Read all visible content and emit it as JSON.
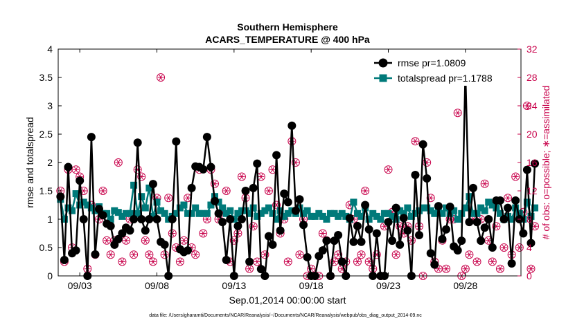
{
  "chart_data": {
    "type": "line",
    "title": "Southern Hemisphere",
    "subtitle": "ACARS_TEMPERATURE @ 400 hPa",
    "xlabel": "Sep.01,2014 00:00:00 start",
    "ylabel_left": "rmse and totalspread",
    "ylabel_right": "# of obs: o=possible; ∗=assimilated",
    "xticks": [
      "09/03",
      "09/08",
      "09/13",
      "09/18",
      "09/23",
      "09/28"
    ],
    "xtick_days": [
      3,
      8,
      13,
      18,
      23,
      28
    ],
    "xlim_days": [
      1.6,
      31.6
    ],
    "ylim_left": [
      0,
      4
    ],
    "yticks_left": [
      "0",
      "0.5",
      "1",
      "1.5",
      "2",
      "2.5",
      "3",
      "3.5",
      "4"
    ],
    "ylim_right": [
      0,
      32
    ],
    "yticks_right": [
      "0",
      "4",
      "8",
      "12",
      "16",
      "20",
      "24",
      "28",
      "32"
    ],
    "grid": false,
    "legend_position": "top-right",
    "footnote": "data file: /Users/gharamti/Documents/NCAR/Reanalysis/~/Documents/NCAR/Reanalysis/webpub/obs_diag_output_2014-09.nc",
    "series": [
      {
        "name": "rmse pr=1.0809",
        "axis": "left",
        "color": "#000000",
        "marker": "circle",
        "x_start_day": 1.75,
        "x_step_day": 0.25,
        "values": [
          1.4,
          0.28,
          1.92,
          0.4,
          0.45,
          1.68,
          1.0,
          0.0,
          2.45,
          0.38,
          1.18,
          1.07,
          0.92,
          0.88,
          0.55,
          0.65,
          0.75,
          0.85,
          0.8,
          1.0,
          2.35,
          1.0,
          0.8,
          1.0,
          1.62,
          1.0,
          0.6,
          0.55,
          0.0,
          1.0,
          2.37,
          0.47,
          0.42,
          0.45,
          1.55,
          1.93,
          1.92,
          1.88,
          2.45,
          1.92,
          1.32,
          1.1,
          0.95,
          0.28,
          1.0,
          0.0,
          0.88,
          1.0,
          1.5,
          0.25,
          1.55,
          1.98,
          0.12,
          0.0,
          0.7,
          0.55,
          2.13,
          0.8,
          1.45,
          1.3,
          2.65,
          1.15,
          1.35,
          0.9,
          0.33,
          0.0,
          0.0,
          0.35,
          0.45,
          0.62,
          0.0,
          0.62,
          0.72,
          0.25,
          0.0,
          1.02,
          0.6,
          0.88,
          0.6,
          1.25,
          0.82,
          0.0,
          0.75,
          0.0,
          0.0,
          0.95,
          0.62,
          1.2,
          0.55,
          1.02,
          0.8,
          0.0,
          1.78,
          0.72,
          2.32,
          1.72,
          0.4,
          0.2,
          1.23,
          0.65,
          0.82,
          1.22,
          0.52,
          0.45,
          0.62,
          3.6,
          0.95,
          1.55,
          0.95,
          0.62,
          0.85,
          1.0,
          0.5,
          1.33,
          1.33,
          1.0,
          1.2,
          0.22,
          1.33,
          1.0,
          0.75,
          1.87,
          0.58,
          1.98
        ]
      },
      {
        "name": "totalspread pr=1.1788",
        "axis": "left",
        "color": "#007a7a",
        "marker": "square",
        "x_start_day": 1.75,
        "x_step_day": 0.25,
        "values": [
          1.35,
          1.0,
          1.2,
          1.15,
          1.45,
          1.25,
          1.3,
          1.25,
          1.2,
          1.15,
          1.22,
          1.1,
          1.1,
          1.0,
          1.15,
          1.12,
          1.05,
          1.1,
          1.1,
          1.6,
          1.1,
          1.4,
          1.2,
          1.55,
          1.05,
          1.3,
          1.15,
          1.1,
          1.0,
          1.05,
          1.1,
          1.2,
          1.25,
          1.1,
          1.1,
          1.2,
          1.1,
          1.1,
          1.1,
          1.25,
          1.4,
          1.3,
          1.2,
          1.1,
          1.15,
          1.0,
          1.1,
          1.15,
          1.15,
          1.1,
          1.2,
          1.05,
          1.1,
          1.15,
          1.2,
          1.1,
          1.0,
          1.15,
          1.05,
          1.1,
          1.15,
          1.1,
          1.2,
          1.1,
          1.15,
          1.05,
          1.05,
          1.1,
          1.05,
          1.0,
          1.1,
          1.1,
          1.05,
          1.1,
          1.05,
          1.0,
          1.3,
          1.1,
          1.05,
          1.2,
          1.0,
          1.1,
          1.05,
          1.0,
          1.1,
          1.1,
          1.05,
          1.0,
          1.15,
          1.1,
          1.2,
          1.05,
          1.1,
          1.15,
          1.2,
          1.2,
          1.15,
          1.1,
          1.2,
          1.1,
          1.2,
          1.1,
          1.15,
          1.0,
          1.1,
          1.2,
          1.4,
          1.1,
          1.1,
          1.2,
          1.15,
          1.3,
          1.25,
          1.2,
          1.1,
          1.0,
          1.05,
          1.0,
          1.2,
          1.1,
          1.0,
          1.3,
          1.05,
          1.2
        ]
      },
      {
        "name": "possible",
        "axis": "right",
        "color": "#c8004a",
        "marker": "circle-open",
        "x_start_day": 1.75,
        "x_step_day": 0.25,
        "values": [
          12,
          2,
          15,
          4,
          15,
          14,
          12,
          1,
          10,
          3,
          8,
          12,
          5,
          3,
          5,
          16,
          2,
          5,
          8,
          3,
          15,
          14,
          5,
          3,
          2,
          11,
          28,
          3,
          11,
          6,
          4,
          2,
          5,
          11,
          4,
          3,
          15,
          6,
          8,
          15,
          13,
          8,
          9,
          12,
          2,
          5,
          6,
          14,
          11,
          1,
          7,
          2,
          14,
          3,
          12,
          15,
          10,
          6,
          8,
          2,
          19,
          16,
          3,
          8,
          0,
          1,
          0,
          0,
          6,
          5,
          0,
          2,
          3,
          1,
          2,
          10,
          8,
          2,
          3,
          12,
          2,
          1,
          3,
          0,
          7,
          15,
          9,
          3,
          7,
          6,
          7,
          5,
          19,
          7,
          0,
          16,
          11,
          2,
          1,
          5,
          1,
          8,
          8,
          23,
          0,
          1,
          3,
          8,
          2,
          8,
          13,
          5,
          2,
          7,
          1,
          4,
          11,
          3,
          14,
          4,
          9,
          24,
          1,
          7
        ]
      },
      {
        "name": "assimilated",
        "axis": "right",
        "color": "#c8004a",
        "marker": "asterisk",
        "x_start_day": 1.75,
        "x_step_day": 0.25,
        "values": [
          12,
          2,
          15,
          4,
          15,
          14,
          12,
          1,
          10,
          3,
          8,
          12,
          5,
          3,
          5,
          16,
          2,
          5,
          8,
          3,
          15,
          14,
          5,
          3,
          2,
          11,
          28,
          3,
          11,
          6,
          4,
          2,
          5,
          11,
          4,
          3,
          15,
          6,
          8,
          15,
          13,
          8,
          9,
          12,
          2,
          5,
          6,
          14,
          11,
          1,
          7,
          2,
          14,
          3,
          12,
          15,
          10,
          6,
          8,
          2,
          19,
          16,
          3,
          8,
          0,
          1,
          0,
          0,
          6,
          5,
          0,
          2,
          3,
          1,
          2,
          10,
          8,
          2,
          3,
          12,
          2,
          1,
          3,
          0,
          7,
          15,
          9,
          3,
          7,
          6,
          7,
          5,
          19,
          7,
          0,
          16,
          11,
          2,
          1,
          5,
          1,
          8,
          8,
          23,
          0,
          1,
          3,
          8,
          2,
          8,
          13,
          5,
          2,
          7,
          1,
          4,
          11,
          3,
          14,
          4,
          9,
          24,
          1,
          7
        ]
      }
    ]
  }
}
